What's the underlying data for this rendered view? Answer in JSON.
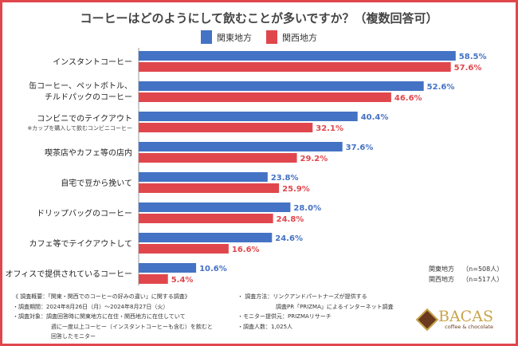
{
  "chart_data": {
    "type": "bar",
    "orientation": "horizontal",
    "title": "コーヒーはどのようにして飲むことが多いですか？（複数回答可）",
    "categories": [
      {
        "label": "インスタントコーヒー",
        "label2": "",
        "sub": ""
      },
      {
        "label": "缶コーヒー、ペットボトル、",
        "label2": "チルドパックのコーヒー",
        "sub": ""
      },
      {
        "label": "コンビニでのテイクアウト",
        "label2": "",
        "sub": "※カップを購入して飲むコンビニコーヒー"
      },
      {
        "label": "喫茶店やカフェ等の店内",
        "label2": "",
        "sub": ""
      },
      {
        "label": "自宅で豆から挽いて",
        "label2": "",
        "sub": ""
      },
      {
        "label": "ドリップバッグのコーヒー",
        "label2": "",
        "sub": ""
      },
      {
        "label": "カフェ等でテイクアウトして",
        "label2": "",
        "sub": ""
      },
      {
        "label": "オフィスで提供されているコーヒー",
        "label2": "",
        "sub": ""
      }
    ],
    "series": [
      {
        "name": "関東地方",
        "color": "#4472c4",
        "values": [
          58.5,
          52.6,
          40.4,
          37.6,
          23.8,
          28.0,
          24.6,
          10.6
        ],
        "labels": [
          "58.5%",
          "52.6%",
          "40.4%",
          "37.6%",
          "23.8%",
          "28.0%",
          "24.6%",
          "10.6%"
        ]
      },
      {
        "name": "関西地方",
        "color": "#e0474c",
        "values": [
          57.6,
          46.6,
          32.1,
          29.2,
          25.9,
          24.8,
          16.6,
          5.4
        ],
        "labels": [
          "57.6%",
          "46.6%",
          "32.1%",
          "29.2%",
          "25.9%",
          "24.8%",
          "16.6%",
          "5.4%"
        ]
      }
    ],
    "xlim": [
      0,
      60
    ],
    "legend": "top",
    "grid": false
  },
  "sample_sizes": [
    {
      "region": "関東地方",
      "n": "（n=508人）"
    },
    {
      "region": "関西地方",
      "n": "（n=517人）"
    }
  ],
  "notes_left": [
    "《 調査概要：「関東・関西でのコーヒーの好みの違い」に関する調査》",
    "・調査期間：2024年8月26日（月）～2024年8月27日（火）",
    "・調査対象：調査回答時に関東地方に在住・関西地方に在住していて",
    "週に一度以上コーヒー（インスタントコーヒーも含む）を飲むと",
    "回答したモニター"
  ],
  "notes_right": [
    "・ 調査方法：リンクアンドパートナーズが提供する",
    "調査PR「PRIZMA」によるインターネット調査",
    "・モニター提供元：PRIZMAリサーチ",
    "・調査人数：1,025人"
  ],
  "logo": {
    "name": "BACAS",
    "tagline": "coffee & chocolate"
  }
}
